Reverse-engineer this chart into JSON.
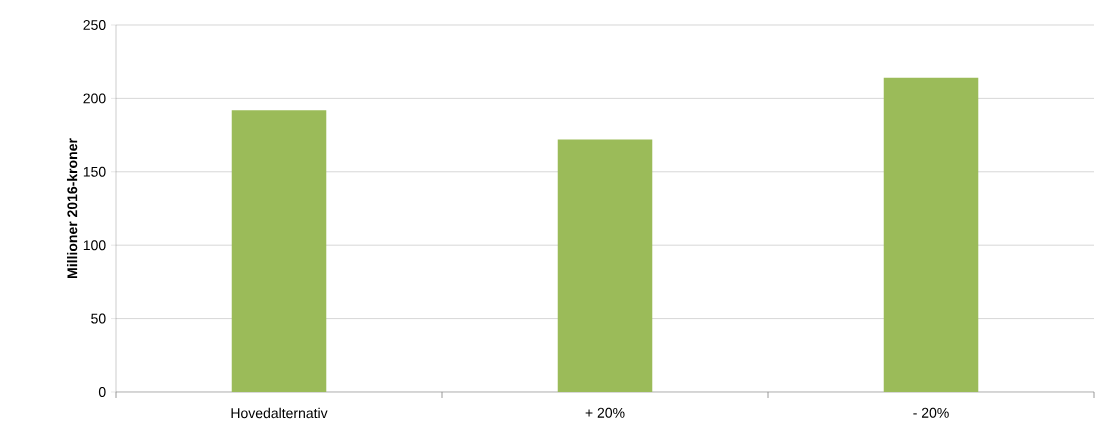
{
  "chart_data": {
    "type": "bar",
    "ylabel": "**Millioner 2016-kroner**",
    "categories": [
      "Hovedalternativ",
      "+ 20%",
      "- 20%"
    ],
    "values": [
      192,
      172,
      214
    ],
    "color": "#9bbb59",
    "ylim": [
      0,
      250
    ],
    "yticks": [
      0,
      50,
      100,
      150,
      200,
      250
    ],
    "grid": "y"
  }
}
